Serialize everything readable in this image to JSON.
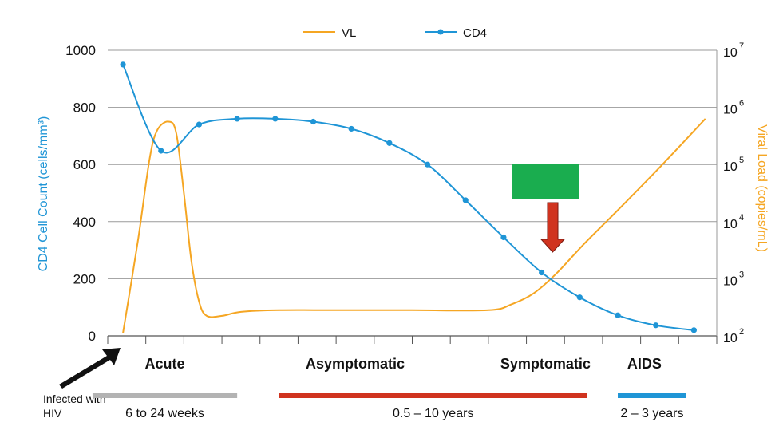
{
  "chart_data": {
    "type": "line",
    "title": "",
    "legend": {
      "position": "top-center",
      "entries": [
        {
          "name": "VL",
          "color": "#f5a623"
        },
        {
          "name": "CD4",
          "color": "#1f95d6"
        }
      ]
    },
    "left_axis": {
      "label": "CD4 Cell Count (cells/mm³)",
      "ylim": [
        0,
        1000
      ],
      "ticks": [
        "0",
        "200",
        "400",
        "600",
        "800",
        "1000"
      ],
      "tick_values": [
        0,
        200,
        400,
        600,
        800,
        1000
      ],
      "color": "#1f95d6"
    },
    "right_axis": {
      "label": "Viral Load (copies/mL)",
      "scale": "log",
      "ylim_exponent": [
        2,
        7
      ],
      "ticks": [
        {
          "base": "10",
          "exp": "2"
        },
        {
          "base": "10",
          "exp": "3"
        },
        {
          "base": "10",
          "exp": "4"
        },
        {
          "base": "10",
          "exp": "5"
        },
        {
          "base": "10",
          "exp": "6"
        },
        {
          "base": "10",
          "exp": "7"
        }
      ],
      "color": "#f5a623"
    },
    "x_axis": {
      "xlim": [
        0,
        16
      ],
      "tick_positions": [
        0,
        1,
        2,
        3,
        4,
        5,
        6,
        7,
        8,
        9,
        10,
        11,
        12,
        13,
        14,
        15,
        16
      ]
    },
    "series": [
      {
        "name": "CD4",
        "axis": "left",
        "color": "#1f95d6",
        "markers": true,
        "x": [
          0.4,
          1.4,
          2.4,
          3.4,
          4.4,
          5.4,
          6.4,
          7.4,
          8.4,
          9.4,
          10.4,
          11.4,
          12.4,
          13.4,
          14.4,
          15.4
        ],
        "values": [
          950,
          648,
          740,
          760,
          760,
          750,
          725,
          675,
          600,
          475,
          345,
          222,
          135,
          72,
          37,
          20
        ]
      },
      {
        "name": "VL",
        "axis": "right",
        "color": "#f5a623",
        "markers": false,
        "x": [
          0.4,
          0.8,
          1.1,
          1.3,
          1.6,
          1.8,
          2.0,
          2.2,
          2.4,
          2.6,
          3.0,
          3.5,
          4.5,
          6.0,
          8.0,
          10.0,
          10.6,
          11.2,
          11.8,
          12.5,
          13.4,
          14.5,
          15.7
        ],
        "values_log10": [
          2.05,
          3.7,
          5.1,
          5.6,
          5.75,
          5.55,
          4.5,
          3.3,
          2.6,
          2.35,
          2.35,
          2.42,
          2.45,
          2.45,
          2.45,
          2.45,
          2.55,
          2.75,
          3.1,
          3.6,
          4.2,
          4.95,
          5.8
        ]
      }
    ],
    "annotations": {
      "infected_label_lines": [
        "Infected with",
        "HIV"
      ],
      "green_box_color": "#1aad4f",
      "arrow_color": "#d0331f"
    },
    "stages": [
      {
        "label": "Acute",
        "x": 1.5,
        "bar_from": -0.4,
        "bar_to": 3.4,
        "bar_color": "#b3b3b3",
        "duration": "6 to 24 weeks"
      },
      {
        "label": "Asymptomatic",
        "x": 6.5,
        "bar_from": 4.5,
        "bar_to": 12.6,
        "bar_color": "#d0331f",
        "duration": "0.5 – 10 years"
      },
      {
        "label": "Symptomatic",
        "x": 11.5,
        "bar_from": null,
        "bar_to": null,
        "bar_color": null,
        "duration": ""
      },
      {
        "label": "AIDS",
        "x": 14.1,
        "bar_from": 13.4,
        "bar_to": 15.2,
        "bar_color": "#1f95d6",
        "duration": "2 – 3 years"
      }
    ]
  }
}
